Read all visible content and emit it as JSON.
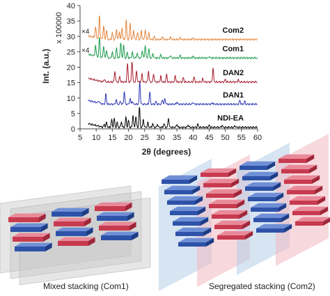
{
  "chart_data": {
    "type": "line",
    "xlabel": "2θ (degrees)",
    "ylabel": "Int. (a.u.)",
    "ylabel_multiplier": "x 100000",
    "xlim": [
      5,
      60
    ],
    "ylim": [
      0,
      40
    ],
    "x_ticks": [
      5,
      10,
      15,
      20,
      25,
      30,
      35,
      40,
      45,
      50,
      55,
      60
    ],
    "y_ticks": [
      0,
      5,
      10,
      15,
      20,
      25,
      30,
      35,
      40
    ],
    "grid": false,
    "series": [
      {
        "name": "NDI-EA",
        "color": "#000000",
        "baseline": 0.5,
        "peaks": [
          [
            12.5,
            1.0
          ],
          [
            13.2,
            1.6
          ],
          [
            14.8,
            2.5
          ],
          [
            15.6,
            2.8
          ],
          [
            16.5,
            1.5
          ],
          [
            17.8,
            1.8
          ],
          [
            19.2,
            3.2
          ],
          [
            20.0,
            2.2
          ],
          [
            21.4,
            4.0
          ],
          [
            22.3,
            3.5
          ],
          [
            23.4,
            6.5
          ],
          [
            24.6,
            2.5
          ],
          [
            26.0,
            1.5
          ],
          [
            27.5,
            1.2
          ],
          [
            29.0,
            1.0
          ],
          [
            31.0,
            1.2
          ],
          [
            32.4,
            3.0
          ],
          [
            35.0,
            1.0
          ],
          [
            38.5,
            0.8
          ],
          [
            41.5,
            1.0
          ],
          [
            45.0,
            0.7
          ],
          [
            49.0,
            0.6
          ],
          [
            53.0,
            0.5
          ]
        ]
      },
      {
        "name": "DAN1",
        "color": "#2b35b5",
        "baseline": 8.0,
        "peaks": [
          [
            10.8,
            0.8
          ],
          [
            13.0,
            3.2
          ],
          [
            16.2,
            1.4
          ],
          [
            17.5,
            1.0
          ],
          [
            18.7,
            4.0
          ],
          [
            20.5,
            1.8
          ],
          [
            21.2,
            1.0
          ],
          [
            23.5,
            7.3
          ],
          [
            26.6,
            4.0
          ],
          [
            28.5,
            0.9
          ],
          [
            30.5,
            1.5
          ],
          [
            31.3,
            1.8
          ],
          [
            35.0,
            0.7
          ],
          [
            40.0,
            0.6
          ],
          [
            46.0,
            0.5
          ],
          [
            54.5,
            1.3
          ],
          [
            56.0,
            0.9
          ]
        ]
      },
      {
        "name": "DAN2",
        "color": "#a81c2b",
        "baseline": 15.2,
        "peaks": [
          [
            12.5,
            1.0
          ],
          [
            15.8,
            3.5
          ],
          [
            17.3,
            1.8
          ],
          [
            19.7,
            6.0
          ],
          [
            21.1,
            6.8
          ],
          [
            22.5,
            3.5
          ],
          [
            24.2,
            2.6
          ],
          [
            26.2,
            3.5
          ],
          [
            27.8,
            2.6
          ],
          [
            30.0,
            1.8
          ],
          [
            31.8,
            2.4
          ],
          [
            34.5,
            2.0
          ],
          [
            37.0,
            1.4
          ],
          [
            40.3,
            1.6
          ],
          [
            43.0,
            1.0
          ],
          [
            46.2,
            4.5
          ],
          [
            50.0,
            0.9
          ],
          [
            54.0,
            0.7
          ]
        ]
      },
      {
        "name": "Com1",
        "color": "#1a9a4a",
        "baseline": 23.0,
        "peaks": [
          [
            9.8,
            3.5
          ],
          [
            11.0,
            6.2
          ],
          [
            12.3,
            4.0
          ],
          [
            13.2,
            2.5
          ],
          [
            15.0,
            2.0
          ],
          [
            16.3,
            3.2
          ],
          [
            17.6,
            5.0
          ],
          [
            18.5,
            4.2
          ],
          [
            19.6,
            1.8
          ],
          [
            21.2,
            1.8
          ],
          [
            22.7,
            1.6
          ],
          [
            24.3,
            2.5
          ],
          [
            25.2,
            4.1
          ],
          [
            26.3,
            3.0
          ],
          [
            27.6,
            1.4
          ],
          [
            30.0,
            1.0
          ],
          [
            33.0,
            0.9
          ],
          [
            36.0,
            0.8
          ],
          [
            40.0,
            0.6
          ],
          [
            45.0,
            0.5
          ]
        ]
      },
      {
        "name": "Com2",
        "color": "#e3843a",
        "baseline": 29.0,
        "peaks": [
          [
            9.8,
            3.5
          ],
          [
            11.0,
            7.2
          ],
          [
            12.3,
            4.5
          ],
          [
            13.2,
            3.0
          ],
          [
            15.0,
            2.2
          ],
          [
            16.3,
            3.2
          ],
          [
            17.2,
            2.5
          ],
          [
            18.0,
            3.8
          ],
          [
            19.3,
            6.2
          ],
          [
            20.5,
            5.2
          ],
          [
            21.6,
            3.0
          ],
          [
            22.8,
            2.2
          ],
          [
            24.0,
            2.8
          ],
          [
            25.2,
            3.2
          ],
          [
            26.3,
            2.0
          ],
          [
            28.0,
            1.0
          ],
          [
            30.5,
            0.8
          ],
          [
            33.0,
            0.8
          ],
          [
            36.0,
            0.6
          ],
          [
            40.0,
            0.5
          ]
        ]
      }
    ],
    "annotations": [
      {
        "text": "×4",
        "series": "Com2"
      },
      {
        "text": "×4",
        "series": "Com1"
      }
    ]
  },
  "captions": {
    "mixed": "Mixed stacking (Com1)",
    "segregated": "Segregated stacking (Com2)"
  },
  "colors": {
    "blue_slab": "#2d52a8",
    "red_slab": "#c83a4f",
    "blue_plane": "#b7cde8",
    "red_plane": "#f0b8c0",
    "gray_plane": "#c8c8c8"
  }
}
